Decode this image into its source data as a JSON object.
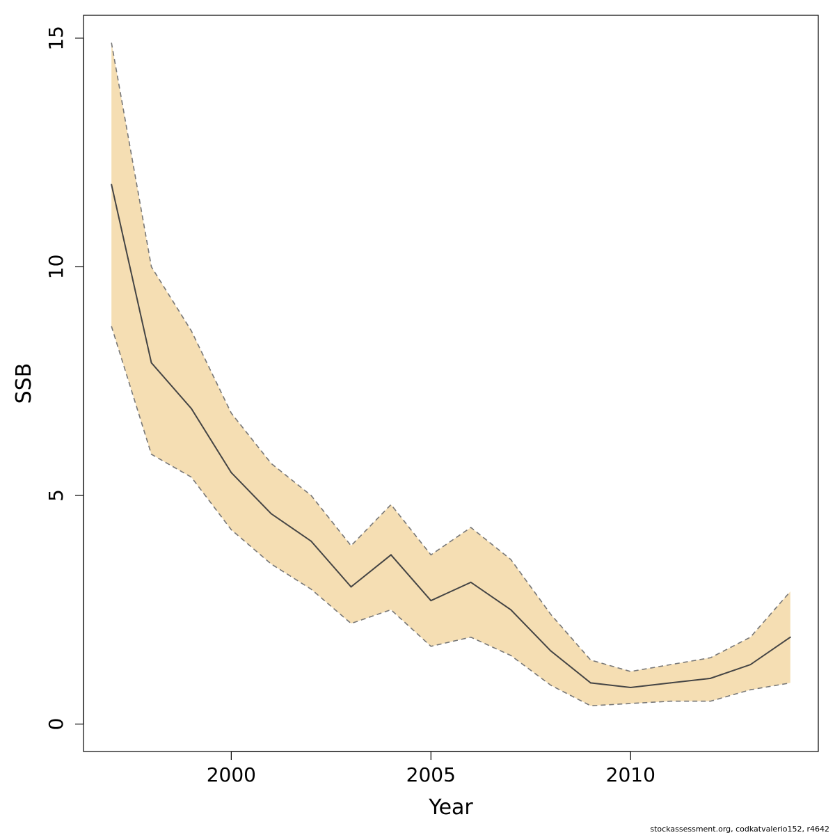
{
  "chart_data": {
    "type": "area",
    "xlabel": "Year",
    "ylabel": "SSB",
    "xlim": [
      1996.3,
      2014.7
    ],
    "ylim": [
      -0.6,
      15.5
    ],
    "x_ticks": [
      2000,
      2005,
      2010
    ],
    "y_ticks": [
      0,
      5,
      10,
      15
    ],
    "x": [
      1997,
      1998,
      1999,
      2000,
      2001,
      2002,
      2003,
      2004,
      2005,
      2006,
      2007,
      2008,
      2009,
      2010,
      2011,
      2012,
      2013,
      2014
    ],
    "series": [
      {
        "role": "estimate",
        "values": [
          11.8,
          7.9,
          6.9,
          5.5,
          4.6,
          4.0,
          3.0,
          3.7,
          2.7,
          3.1,
          2.5,
          1.6,
          0.9,
          0.8,
          0.9,
          1.0,
          1.3,
          1.9
        ]
      },
      {
        "role": "upper",
        "values": [
          14.9,
          10.0,
          8.6,
          6.8,
          5.7,
          5.0,
          3.9,
          4.8,
          3.7,
          4.3,
          3.6,
          2.4,
          1.4,
          1.15,
          1.3,
          1.45,
          1.9,
          2.9
        ]
      },
      {
        "role": "lower",
        "values": [
          8.7,
          5.9,
          5.4,
          4.25,
          3.5,
          2.95,
          2.2,
          2.5,
          1.7,
          1.9,
          1.5,
          0.85,
          0.4,
          0.45,
          0.5,
          0.5,
          0.75,
          0.9
        ]
      }
    ],
    "band_color": "#F5DEB3",
    "line_color": "#444444",
    "bound_color": "#777777",
    "grid": false,
    "legend": "none"
  },
  "footer": "stockassessment.org, codkatvalerio152, r4642"
}
